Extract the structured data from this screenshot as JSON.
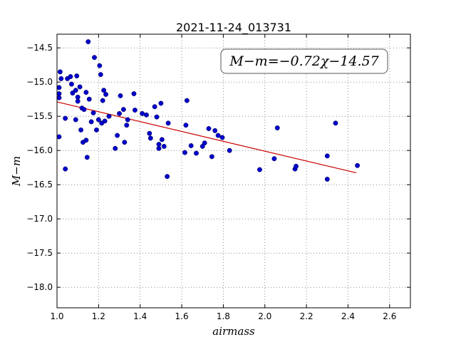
{
  "chart_data": {
    "type": "scatter",
    "title": "2021-11-24_013731",
    "xlabel": "airmass",
    "ylabel": "M−m",
    "xlim": [
      1.0,
      2.7
    ],
    "ylim": [
      -18.3,
      -14.3
    ],
    "y_inverted": true,
    "grid": true,
    "xticks": [
      1.0,
      1.2,
      1.4,
      1.6,
      1.8,
      2.0,
      2.2,
      2.4,
      2.6
    ],
    "xtick_labels": [
      "1.0",
      "1.2",
      "1.4",
      "1.6",
      "1.8",
      "2.0",
      "2.2",
      "2.4",
      "2.6"
    ],
    "yticks": [
      -14.5,
      -15.0,
      -15.5,
      -16.0,
      -16.5,
      -17.0,
      -17.5,
      -18.0
    ],
    "ytick_labels": [
      "−14.5",
      "−15.0",
      "−15.5",
      "−16.0",
      "−16.5",
      "−17.0",
      "−17.5",
      "−18.0"
    ],
    "point_color": "#0000cc",
    "fit_color": "#cc0000",
    "annotation": "M−m=−0.72χ−14.57",
    "fit": {
      "slope": -0.72,
      "intercept": -14.57,
      "x_range": [
        1.0,
        2.44
      ]
    },
    "points": [
      [
        1.01,
        -15.8
      ],
      [
        1.01,
        -15.08
      ],
      [
        1.01,
        -15.23
      ],
      [
        1.01,
        -15.17
      ],
      [
        1.015,
        -14.85
      ],
      [
        1.02,
        -14.95
      ],
      [
        1.04,
        -16.27
      ],
      [
        1.04,
        -15.53
      ],
      [
        1.05,
        -14.95
      ],
      [
        1.065,
        -14.92
      ],
      [
        1.07,
        -15.03
      ],
      [
        1.075,
        -15.16
      ],
      [
        1.09,
        -15.55
      ],
      [
        1.09,
        -15.12
      ],
      [
        1.095,
        -14.91
      ],
      [
        1.1,
        -15.22
      ],
      [
        1.1,
        -15.28
      ],
      [
        1.11,
        -15.07
      ],
      [
        1.115,
        -15.7
      ],
      [
        1.12,
        -15.38
      ],
      [
        1.125,
        -15.88
      ],
      [
        1.13,
        -15.4
      ],
      [
        1.14,
        -15.15
      ],
      [
        1.14,
        -15.85
      ],
      [
        1.145,
        -16.1
      ],
      [
        1.15,
        -14.41
      ],
      [
        1.155,
        -15.25
      ],
      [
        1.165,
        -15.58
      ],
      [
        1.175,
        -15.45
      ],
      [
        1.18,
        -14.64
      ],
      [
        1.19,
        -15.7
      ],
      [
        1.2,
        -15.55
      ],
      [
        1.205,
        -14.76
      ],
      [
        1.21,
        -14.89
      ],
      [
        1.215,
        -15.6
      ],
      [
        1.22,
        -15.27
      ],
      [
        1.225,
        -15.12
      ],
      [
        1.23,
        -15.57
      ],
      [
        1.235,
        -15.18
      ],
      [
        1.25,
        -15.5
      ],
      [
        1.28,
        -15.97
      ],
      [
        1.29,
        -15.78
      ],
      [
        1.3,
        -15.46
      ],
      [
        1.305,
        -15.2
      ],
      [
        1.32,
        -15.4
      ],
      [
        1.325,
        -15.88
      ],
      [
        1.335,
        -15.63
      ],
      [
        1.34,
        -15.55
      ],
      [
        1.37,
        -15.17
      ],
      [
        1.375,
        -15.41
      ],
      [
        1.41,
        -15.46
      ],
      [
        1.43,
        -15.48
      ],
      [
        1.445,
        -15.75
      ],
      [
        1.45,
        -15.82
      ],
      [
        1.47,
        -15.36
      ],
      [
        1.48,
        -15.51
      ],
      [
        1.49,
        -15.91
      ],
      [
        1.49,
        -15.97
      ],
      [
        1.5,
        -15.31
      ],
      [
        1.505,
        -15.84
      ],
      [
        1.515,
        -15.94
      ],
      [
        1.53,
        -16.38
      ],
      [
        1.535,
        -15.6
      ],
      [
        1.615,
        -16.03
      ],
      [
        1.62,
        -15.63
      ],
      [
        1.625,
        -15.27
      ],
      [
        1.645,
        -15.93
      ],
      [
        1.67,
        -16.04
      ],
      [
        1.7,
        -15.94
      ],
      [
        1.71,
        -15.89
      ],
      [
        1.73,
        -15.68
      ],
      [
        1.745,
        -16.09
      ],
      [
        1.76,
        -15.71
      ],
      [
        1.775,
        -15.78
      ],
      [
        1.795,
        -15.81
      ],
      [
        1.83,
        -16.0
      ],
      [
        1.975,
        -16.28
      ],
      [
        2.045,
        -16.12
      ],
      [
        2.06,
        -15.67
      ],
      [
        2.145,
        -16.27
      ],
      [
        2.15,
        -16.23
      ],
      [
        2.3,
        -16.42
      ],
      [
        2.3,
        -16.08
      ],
      [
        2.34,
        -15.6
      ],
      [
        2.445,
        -16.22
      ]
    ]
  }
}
